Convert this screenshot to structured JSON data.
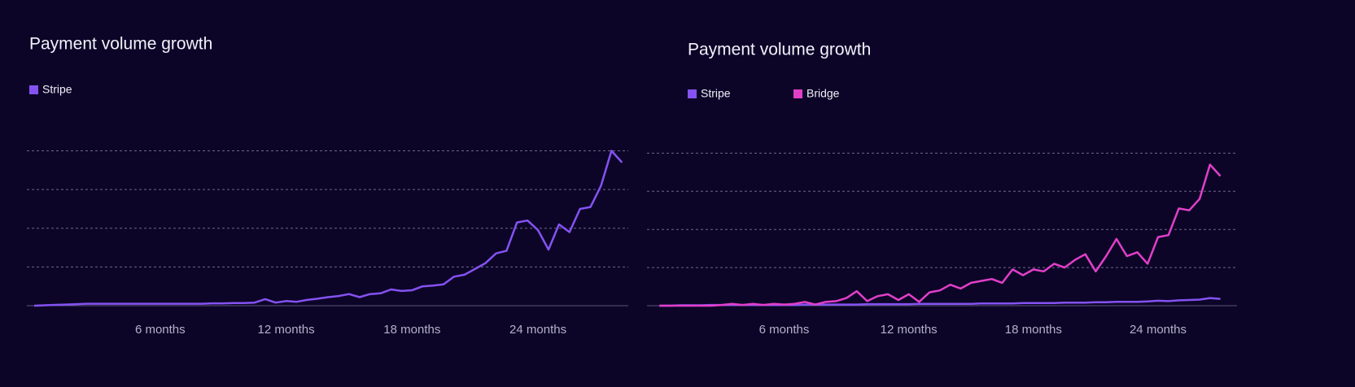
{
  "chart_data": [
    {
      "type": "line",
      "title": "Payment volume growth",
      "x": [
        0,
        0.5,
        1,
        1.5,
        2,
        2.5,
        3,
        3.5,
        4,
        4.5,
        5,
        5.5,
        6,
        6.5,
        7,
        7.5,
        8,
        8.5,
        9,
        9.5,
        10,
        10.5,
        11,
        11.5,
        12,
        12.5,
        13,
        13.5,
        14,
        14.5,
        15,
        15.5,
        16,
        16.5,
        17,
        17.5,
        18,
        18.5,
        19,
        19.5,
        20,
        20.5,
        21,
        21.5,
        22,
        22.5,
        23,
        23.5,
        24,
        24.5,
        25,
        25.5,
        26,
        26.5,
        27,
        27.5,
        28
      ],
      "series": [
        {
          "name": "Stripe",
          "color": "#8552f2",
          "values": [
            0,
            0.01,
            0.02,
            0.03,
            0.04,
            0.05,
            0.05,
            0.05,
            0.05,
            0.05,
            0.05,
            0.05,
            0.05,
            0.05,
            0.05,
            0.05,
            0.05,
            0.06,
            0.06,
            0.07,
            0.07,
            0.08,
            0.17,
            0.08,
            0.12,
            0.1,
            0.15,
            0.18,
            0.22,
            0.25,
            0.3,
            0.22,
            0.3,
            0.32,
            0.42,
            0.38,
            0.4,
            0.5,
            0.52,
            0.55,
            0.75,
            0.8,
            0.95,
            1.1,
            1.35,
            1.42,
            2.15,
            2.2,
            1.95,
            1.45,
            2.1,
            1.9,
            2.5,
            2.55,
            3.1,
            4.0,
            3.7
          ]
        }
      ],
      "xlim": [
        -0.35,
        28.3
      ],
      "xticks": [
        {
          "value": 6,
          "label": "6 months"
        },
        {
          "value": 12,
          "label": "12 months"
        },
        {
          "value": 18,
          "label": "18 months"
        },
        {
          "value": 24,
          "label": "24 months"
        }
      ],
      "ylim": [
        0,
        4.2
      ],
      "yticks": [
        0,
        1,
        2,
        3,
        4
      ],
      "grid": true
    },
    {
      "type": "line",
      "title": "Payment volume growth",
      "x": [
        0,
        0.5,
        1,
        1.5,
        2,
        2.5,
        3,
        3.5,
        4,
        4.5,
        5,
        5.5,
        6,
        6.5,
        7,
        7.5,
        8,
        8.5,
        9,
        9.5,
        10,
        10.5,
        11,
        11.5,
        12,
        12.5,
        13,
        13.5,
        14,
        14.5,
        15,
        15.5,
        16,
        16.5,
        17,
        17.5,
        18,
        18.5,
        19,
        19.5,
        20,
        20.5,
        21,
        21.5,
        22,
        22.5,
        23,
        23.5,
        24,
        24.5,
        25,
        25.5,
        26,
        26.5,
        27
      ],
      "series": [
        {
          "name": "Stripe",
          "color": "#8552f2",
          "values": [
            0,
            0,
            0.01,
            0.01,
            0.01,
            0.02,
            0.02,
            0.02,
            0.02,
            0.02,
            0.02,
            0.02,
            0.02,
            0.02,
            0.03,
            0.03,
            0.03,
            0.03,
            0.03,
            0.03,
            0.04,
            0.04,
            0.04,
            0.04,
            0.04,
            0.05,
            0.05,
            0.05,
            0.05,
            0.05,
            0.05,
            0.06,
            0.06,
            0.06,
            0.06,
            0.07,
            0.07,
            0.07,
            0.07,
            0.08,
            0.08,
            0.08,
            0.09,
            0.09,
            0.1,
            0.1,
            0.1,
            0.11,
            0.13,
            0.12,
            0.14,
            0.15,
            0.16,
            0.2,
            0.18
          ]
        },
        {
          "name": "Bridge",
          "color": "#e23fc9",
          "values": [
            0,
            0,
            0,
            0,
            0,
            0,
            0.02,
            0.05,
            0.02,
            0.05,
            0.02,
            0.05,
            0.03,
            0.05,
            0.1,
            0.03,
            0.1,
            0.12,
            0.2,
            0.38,
            0.12,
            0.25,
            0.3,
            0.15,
            0.3,
            0.1,
            0.35,
            0.4,
            0.55,
            0.45,
            0.6,
            0.65,
            0.7,
            0.6,
            0.95,
            0.8,
            0.95,
            0.9,
            1.1,
            1.0,
            1.2,
            1.35,
            0.9,
            1.3,
            1.75,
            1.3,
            1.4,
            1.1,
            1.8,
            1.85,
            2.55,
            2.5,
            2.8,
            3.7,
            3.4
          ]
        }
      ],
      "xlim": [
        -0.6,
        27.8
      ],
      "xticks": [
        {
          "value": 6,
          "label": "6 months"
        },
        {
          "value": 12,
          "label": "12 months"
        },
        {
          "value": 18,
          "label": "18 months"
        },
        {
          "value": 24,
          "label": "24 months"
        }
      ],
      "ylim": [
        0,
        4.2
      ],
      "yticks": [
        0,
        1,
        2,
        3,
        4
      ],
      "grid": true
    }
  ]
}
